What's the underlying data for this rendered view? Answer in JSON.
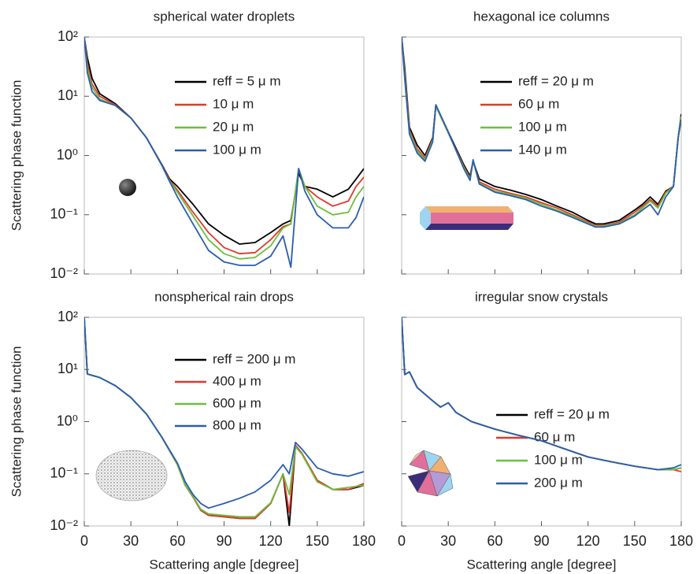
{
  "chart_data": [
    {
      "type": "line",
      "title": "spherical water droplets",
      "y_label": "Scattering phase function",
      "x": [
        0,
        2,
        5,
        10,
        20,
        30,
        40,
        50,
        55,
        60,
        70,
        80,
        90,
        100,
        110,
        120,
        128,
        133,
        138,
        142,
        150,
        160,
        170,
        175,
        180
      ],
      "xlim": [
        0,
        180
      ],
      "xticks": [
        0,
        30,
        60,
        90,
        120,
        150,
        180
      ],
      "ylim": [
        0.01,
        100
      ],
      "y_scale": "log",
      "yticks": [
        {
          "value": 100,
          "label": "10²"
        },
        {
          "value": 10,
          "label": "10¹"
        },
        {
          "value": 1,
          "label": "10⁰"
        },
        {
          "value": 0.1,
          "label": "10⁻¹"
        },
        {
          "value": 0.01,
          "label": "10⁻²"
        }
      ],
      "series": [
        {
          "name": "reff = 5 μ m",
          "color": "#000000",
          "values": [
            100,
            45,
            20,
            11,
            7.5,
            4.3,
            2.0,
            0.7,
            0.4,
            0.3,
            0.15,
            0.07,
            0.045,
            0.032,
            0.034,
            0.05,
            0.07,
            0.08,
            0.5,
            0.3,
            0.27,
            0.2,
            0.27,
            0.4,
            0.6
          ]
        },
        {
          "name": "10 μ m",
          "color": "#e0382b",
          "values": [
            100,
            35,
            16,
            10,
            7.2,
            4.3,
            2.0,
            0.68,
            0.38,
            0.26,
            0.11,
            0.05,
            0.028,
            0.022,
            0.023,
            0.038,
            0.063,
            0.07,
            0.6,
            0.3,
            0.2,
            0.14,
            0.17,
            0.3,
            0.43
          ]
        },
        {
          "name": "20 μ m",
          "color": "#6cbf3c",
          "values": [
            100,
            30,
            14,
            9,
            7,
            4.3,
            2.0,
            0.68,
            0.37,
            0.24,
            0.095,
            0.038,
            0.022,
            0.018,
            0.019,
            0.03,
            0.06,
            0.07,
            0.6,
            0.3,
            0.14,
            0.1,
            0.11,
            0.2,
            0.3
          ]
        },
        {
          "name": "100 μ m",
          "color": "#2a5db0",
          "values": [
            100,
            25,
            12,
            8.5,
            7,
            4.3,
            2.0,
            0.68,
            0.36,
            0.2,
            0.07,
            0.025,
            0.016,
            0.014,
            0.014,
            0.02,
            0.044,
            0.013,
            0.6,
            0.25,
            0.1,
            0.06,
            0.06,
            0.09,
            0.2
          ]
        }
      ]
    },
    {
      "type": "line",
      "title": "hexagonal ice columns",
      "x": [
        0,
        2,
        5,
        10,
        15,
        20,
        22,
        30,
        40,
        44,
        46,
        50,
        60,
        70,
        80,
        90,
        100,
        110,
        120,
        125,
        130,
        140,
        150,
        155,
        160,
        165,
        170,
        175,
        178,
        180
      ],
      "xlim": [
        0,
        180
      ],
      "xticks": [
        0,
        30,
        60,
        90,
        120,
        150,
        180
      ],
      "ylim": [
        0.01,
        100
      ],
      "y_scale": "log",
      "yticks": [
        100,
        10,
        1,
        0.1,
        0.01
      ],
      "series": [
        {
          "name": "reff = 20 μ m",
          "color": "#000000",
          "values": [
            100,
            30,
            3,
            1.5,
            1.0,
            2.0,
            7.0,
            2.5,
            0.7,
            0.45,
            0.8,
            0.4,
            0.3,
            0.26,
            0.22,
            0.18,
            0.14,
            0.11,
            0.08,
            0.07,
            0.07,
            0.08,
            0.12,
            0.15,
            0.2,
            0.15,
            0.25,
            0.3,
            2.0,
            5.0
          ]
        },
        {
          "name": "60 μ m",
          "color": "#e0382b",
          "values": [
            100,
            25,
            2.7,
            1.3,
            0.9,
            1.9,
            6.8,
            2.4,
            0.65,
            0.42,
            0.8,
            0.36,
            0.27,
            0.23,
            0.2,
            0.16,
            0.13,
            0.1,
            0.075,
            0.066,
            0.066,
            0.075,
            0.11,
            0.14,
            0.18,
            0.14,
            0.24,
            0.3,
            2.0,
            4.5
          ]
        },
        {
          "name": "100 μ m",
          "color": "#6cbf3c",
          "values": [
            100,
            22,
            2.5,
            1.2,
            0.85,
            1.8,
            6.8,
            2.4,
            0.63,
            0.4,
            0.8,
            0.34,
            0.25,
            0.22,
            0.19,
            0.15,
            0.12,
            0.095,
            0.072,
            0.064,
            0.064,
            0.072,
            0.1,
            0.13,
            0.17,
            0.13,
            0.23,
            0.3,
            2.0,
            4.5
          ]
        },
        {
          "name": "140 μ m",
          "color": "#2a5db0",
          "values": [
            100,
            20,
            2.3,
            1.1,
            0.8,
            1.7,
            7.2,
            2.5,
            0.6,
            0.38,
            0.85,
            0.33,
            0.24,
            0.21,
            0.18,
            0.14,
            0.115,
            0.09,
            0.07,
            0.062,
            0.062,
            0.07,
            0.095,
            0.12,
            0.15,
            0.1,
            0.2,
            0.3,
            2.0,
            4.0
          ]
        }
      ]
    },
    {
      "type": "line",
      "title": "nonspherical rain drops",
      "y_label": "Scattering phase function",
      "x_label": "Scattering angle [degree]",
      "x": [
        0,
        2,
        10,
        20,
        30,
        40,
        50,
        60,
        65,
        70,
        75,
        80,
        90,
        100,
        110,
        120,
        128,
        132,
        136,
        140,
        150,
        160,
        170,
        180
      ],
      "xlim": [
        0,
        180
      ],
      "xticks": [
        0,
        30,
        60,
        90,
        120,
        150,
        180
      ],
      "ylim": [
        0.01,
        100
      ],
      "y_scale": "log",
      "yticks": [
        {
          "value": 100,
          "label": "10²"
        },
        {
          "value": 10,
          "label": "10¹"
        },
        {
          "value": 1,
          "label": "10⁰"
        },
        {
          "value": 0.1,
          "label": "10⁻¹"
        },
        {
          "value": 0.01,
          "label": "10⁻²"
        }
      ],
      "series": [
        {
          "name": "reff = 200 μ m",
          "color": "#000000",
          "values": [
            100,
            8.2,
            7.0,
            4.9,
            2.9,
            1.4,
            0.5,
            0.15,
            0.06,
            0.036,
            0.02,
            0.016,
            0.015,
            0.014,
            0.014,
            0.027,
            0.1,
            0.01,
            0.35,
            0.25,
            0.075,
            0.05,
            0.05,
            0.06
          ]
        },
        {
          "name": "400 μ m",
          "color": "#e0382b",
          "values": [
            100,
            8.2,
            7.0,
            4.9,
            2.9,
            1.4,
            0.5,
            0.15,
            0.06,
            0.036,
            0.02,
            0.016,
            0.015,
            0.014,
            0.014,
            0.027,
            0.1,
            0.018,
            0.35,
            0.25,
            0.075,
            0.05,
            0.05,
            0.065
          ]
        },
        {
          "name": "600 μ m",
          "color": "#6cbf3c",
          "values": [
            100,
            8.2,
            7.0,
            4.9,
            2.9,
            1.4,
            0.5,
            0.15,
            0.06,
            0.037,
            0.021,
            0.017,
            0.016,
            0.015,
            0.015,
            0.028,
            0.1,
            0.04,
            0.33,
            0.24,
            0.07,
            0.05,
            0.055,
            0.06
          ]
        },
        {
          "name": "800 μ m",
          "color": "#2a5db0",
          "values": [
            100,
            8.2,
            7.0,
            4.9,
            2.9,
            1.4,
            0.5,
            0.16,
            0.07,
            0.04,
            0.027,
            0.022,
            0.027,
            0.034,
            0.045,
            0.075,
            0.15,
            0.1,
            0.4,
            0.3,
            0.13,
            0.1,
            0.09,
            0.11
          ]
        }
      ]
    },
    {
      "type": "line",
      "title": "irregular snow crystals",
      "x_label": "Scattering angle [degree]",
      "x": [
        0,
        2,
        5,
        10,
        20,
        25,
        30,
        35,
        45,
        60,
        75,
        90,
        105,
        120,
        135,
        150,
        165,
        175,
        180
      ],
      "xlim": [
        0,
        180
      ],
      "xticks": [
        0,
        30,
        60,
        90,
        120,
        150,
        180
      ],
      "ylim": [
        0.01,
        100
      ],
      "y_scale": "log",
      "yticks": [
        100,
        10,
        1,
        0.1,
        0.01
      ],
      "series": [
        {
          "name": "reff = 20 μ m",
          "color": "#000000",
          "values": [
            100,
            8,
            9,
            4.5,
            2.5,
            1.9,
            2.3,
            1.5,
            1.0,
            0.72,
            0.55,
            0.43,
            0.3,
            0.21,
            0.17,
            0.14,
            0.12,
            0.12,
            0.13
          ]
        },
        {
          "name": "60 μ m",
          "color": "#e0382b",
          "values": [
            100,
            8,
            9,
            4.5,
            2.5,
            1.9,
            2.3,
            1.5,
            1.0,
            0.72,
            0.55,
            0.43,
            0.3,
            0.21,
            0.17,
            0.14,
            0.12,
            0.12,
            0.11
          ]
        },
        {
          "name": "100 μ m",
          "color": "#6cbf3c",
          "values": [
            100,
            8,
            9,
            4.5,
            2.5,
            1.9,
            2.3,
            1.5,
            1.0,
            0.72,
            0.55,
            0.43,
            0.3,
            0.21,
            0.17,
            0.14,
            0.12,
            0.12,
            0.13
          ]
        },
        {
          "name": "200 μ m",
          "color": "#2a5db0",
          "values": [
            100,
            8,
            9,
            4.5,
            2.5,
            1.9,
            2.3,
            1.5,
            1.0,
            0.72,
            0.55,
            0.43,
            0.3,
            0.21,
            0.17,
            0.14,
            0.12,
            0.13,
            0.15
          ]
        }
      ]
    }
  ]
}
